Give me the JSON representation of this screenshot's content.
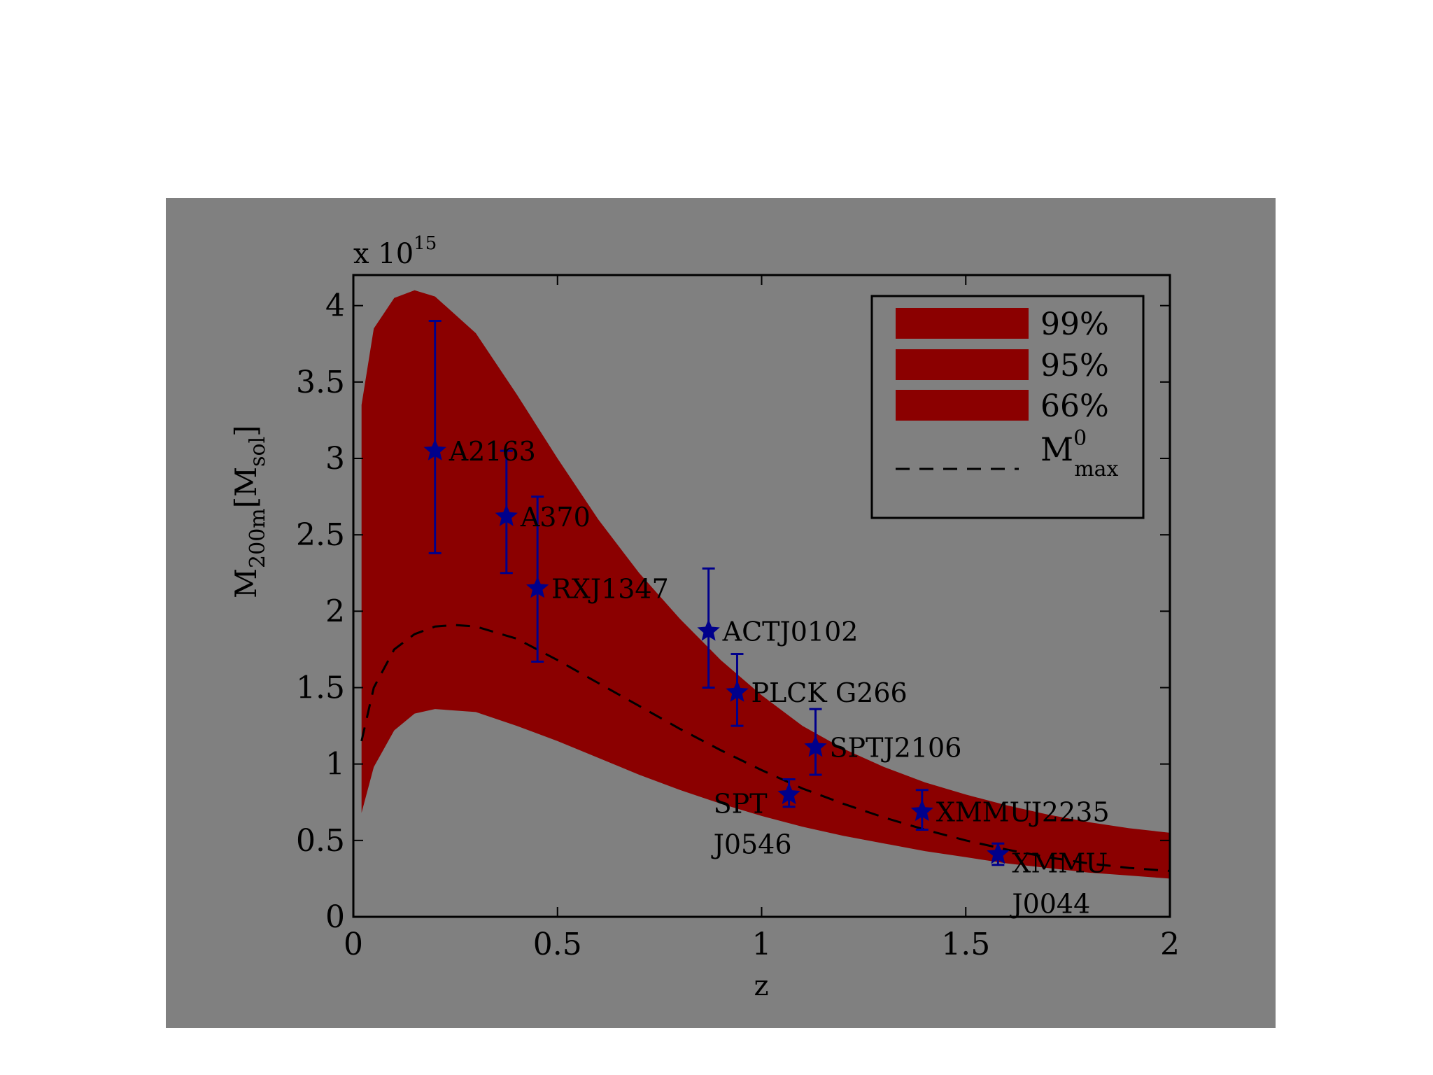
{
  "chart_data": {
    "type": "area",
    "xlabel": "z",
    "ylabel_main": "M",
    "ylabel_sub": "200m",
    "ylabel_rest_open": "[M",
    "ylabel_rest_sub": "sol",
    "ylabel_rest_close": "]",
    "y_multiplier_base": "x 10",
    "y_multiplier_exp": "15",
    "xlim": [
      0,
      2
    ],
    "ylim": [
      0,
      4.2
    ],
    "ylim_scale": 1000000000000000.0,
    "xticks": [
      0,
      0.5,
      1,
      1.5,
      2
    ],
    "xtick_labels": [
      "0",
      "0.5",
      "1",
      "1.5",
      "2"
    ],
    "yticks": [
      0,
      0.5,
      1,
      1.5,
      2,
      2.5,
      3,
      3.5,
      4
    ],
    "ytick_labels": [
      "0",
      "0.5",
      "1",
      "1.5",
      "2",
      "2.5",
      "3",
      "3.5",
      "4"
    ],
    "grid": false,
    "band": {
      "color": "#8b0000",
      "x": [
        0.02,
        0.05,
        0.1,
        0.15,
        0.2,
        0.3,
        0.4,
        0.5,
        0.6,
        0.7,
        0.8,
        0.9,
        1.0,
        1.1,
        1.2,
        1.3,
        1.4,
        1.5,
        1.6,
        1.7,
        1.8,
        1.9,
        2.0
      ],
      "upper": [
        3.35,
        3.85,
        4.05,
        4.1,
        4.06,
        3.82,
        3.42,
        3.0,
        2.6,
        2.25,
        1.95,
        1.68,
        1.45,
        1.25,
        1.1,
        0.98,
        0.88,
        0.8,
        0.73,
        0.67,
        0.62,
        0.58,
        0.55
      ],
      "lower": [
        0.68,
        0.98,
        1.22,
        1.33,
        1.36,
        1.34,
        1.25,
        1.15,
        1.04,
        0.93,
        0.83,
        0.74,
        0.66,
        0.59,
        0.53,
        0.48,
        0.43,
        0.39,
        0.35,
        0.32,
        0.29,
        0.27,
        0.25
      ]
    },
    "mmax_curve": {
      "name": "M",
      "name_sup": "0",
      "name_sub": "max",
      "style": "dashed",
      "x": [
        0.02,
        0.05,
        0.1,
        0.15,
        0.2,
        0.25,
        0.3,
        0.4,
        0.5,
        0.6,
        0.7,
        0.8,
        0.9,
        1.0,
        1.1,
        1.2,
        1.3,
        1.4,
        1.5,
        1.6,
        1.7,
        1.8,
        1.9,
        2.0
      ],
      "y": [
        1.15,
        1.5,
        1.75,
        1.85,
        1.9,
        1.91,
        1.9,
        1.82,
        1.68,
        1.53,
        1.38,
        1.23,
        1.09,
        0.96,
        0.84,
        0.74,
        0.65,
        0.57,
        0.5,
        0.44,
        0.39,
        0.35,
        0.32,
        0.3
      ]
    },
    "legend": {
      "placement": "top-right",
      "entries": [
        {
          "label": "99%",
          "color": "#8b0000"
        },
        {
          "label": "95%",
          "color": "#8b0000"
        },
        {
          "label": "66%",
          "color": "#8b0000"
        }
      ]
    },
    "clusters": {
      "color": "#00008b",
      "points": [
        {
          "label": "A2163",
          "label2": "",
          "x": 0.2,
          "y": 3.05,
          "ylo": 2.38,
          "yhi": 3.9
        },
        {
          "label": "A370",
          "label2": "",
          "x": 0.375,
          "y": 2.62,
          "ylo": 2.25,
          "yhi": 3.05
        },
        {
          "label": "RXJ1347",
          "label2": "",
          "x": 0.451,
          "y": 2.15,
          "ylo": 1.67,
          "yhi": 2.75
        },
        {
          "label": "ACTJ0102",
          "label2": "",
          "x": 0.87,
          "y": 1.87,
          "ylo": 1.5,
          "yhi": 2.28
        },
        {
          "label": "PLCK G266",
          "label2": "",
          "x": 0.94,
          "y": 1.47,
          "ylo": 1.25,
          "yhi": 1.72
        },
        {
          "label": "SPTJ2106",
          "label2": "",
          "x": 1.132,
          "y": 1.11,
          "ylo": 0.93,
          "yhi": 1.36
        },
        {
          "label": "SPT",
          "label2": "J0546",
          "x": 1.067,
          "y": 0.8,
          "ylo": 0.72,
          "yhi": 0.9
        },
        {
          "label": "XMMUJ2235",
          "label2": "",
          "x": 1.393,
          "y": 0.69,
          "ylo": 0.57,
          "yhi": 0.83
        },
        {
          "label": "XMMU",
          "label2": "J0044",
          "x": 1.579,
          "y": 0.41,
          "ylo": 0.34,
          "yhi": 0.48
        }
      ]
    }
  }
}
